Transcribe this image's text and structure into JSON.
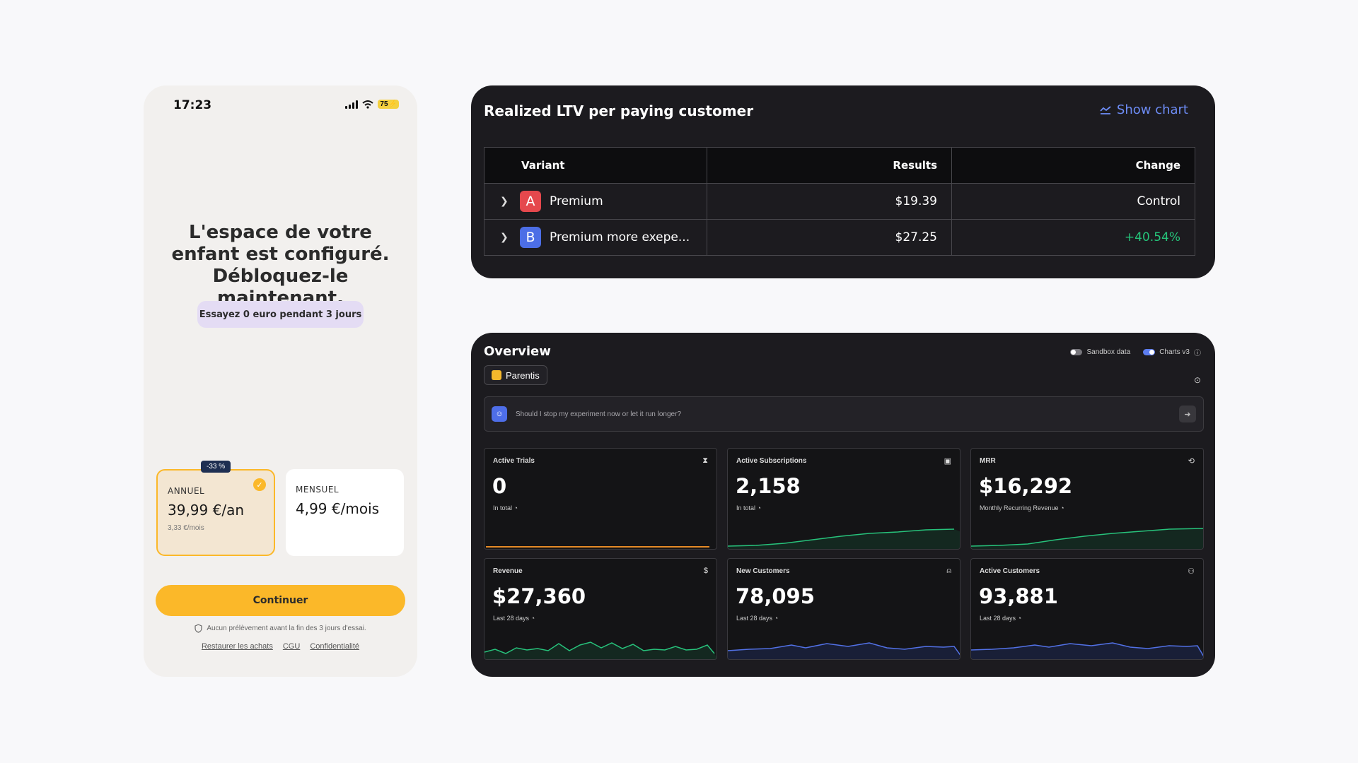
{
  "phone": {
    "time": "17:23",
    "battery": "75⚡",
    "headline": "L'espace de votre enfant est configuré. Débloquez-le maintenant.",
    "trial_pill": "Essayez 0 euro pendant 3 jours",
    "plans": {
      "annual": {
        "discount": "-33 %",
        "label": "ANNUEL",
        "price": "39,99 €/an",
        "sub": "3,33 €/mois"
      },
      "monthly": {
        "label": "MENSUEL",
        "price": "4,99 €/mois"
      }
    },
    "continue_label": "Continuer",
    "notice": "Aucun prélèvement avant la fin des 3 jours d'essai.",
    "links": {
      "restore": "Restaurer les achats",
      "cgu": "CGU",
      "privacy": "Confidentialité"
    }
  },
  "ltv": {
    "title": "Realized LTV per paying customer",
    "show_chart": "Show chart",
    "headers": {
      "variant": "Variant",
      "results": "Results",
      "change": "Change"
    },
    "rows": [
      {
        "badge": "A",
        "badge_color": "#e5484d",
        "name": "Premium",
        "result": "$19.39",
        "change": "Control"
      },
      {
        "badge": "B",
        "badge_color": "#4c6ee6",
        "name": "Premium more exepe...",
        "result": "$27.25",
        "change": "+40.54%"
      }
    ]
  },
  "overview": {
    "title": "Overview",
    "toggles": {
      "sandbox": "Sandbox data",
      "charts": "Charts v3"
    },
    "project": "Parentis",
    "ask_placeholder": "Should I stop my experiment now or let it run longer?",
    "metrics": [
      {
        "label": "Active Trials",
        "value": "0",
        "sub": "In total",
        "icon": "hourglass-icon"
      },
      {
        "label": "Active Subscriptions",
        "value": "2,158",
        "sub": "In total",
        "icon": "calendar-icon"
      },
      {
        "label": "MRR",
        "value": "$16,292",
        "sub": "Monthly Recurring Revenue",
        "icon": "refresh-icon"
      },
      {
        "label": "Revenue",
        "value": "$27,360",
        "sub": "Last 28 days",
        "icon": "dollar-icon"
      },
      {
        "label": "New Customers",
        "value": "78,095",
        "sub": "Last 28 days",
        "icon": "user-plus-icon"
      },
      {
        "label": "Active Customers",
        "value": "93,881",
        "sub": "Last 28 days",
        "icon": "user-icon"
      }
    ]
  }
}
